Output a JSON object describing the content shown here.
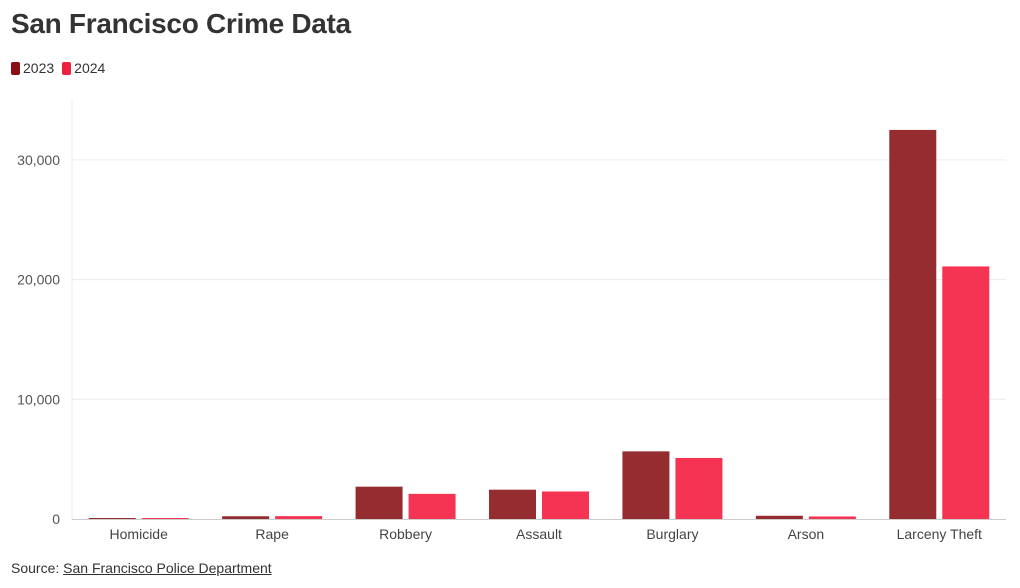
{
  "header": {
    "title": "San Francisco Crime Data"
  },
  "colors": {
    "series_2023": "#952c2f",
    "series_2024": "#f53353",
    "grid": "#ececec",
    "axis": "#cccccc"
  },
  "legend": {
    "items": [
      {
        "label": "2023",
        "color": "#8b0f14"
      },
      {
        "label": "2024",
        "color": "#ee1f3f"
      }
    ]
  },
  "footer": {
    "source_prefix": "Source:",
    "source_link": "San Francisco Police Department"
  },
  "chart_data": {
    "type": "bar",
    "title": "San Francisco Crime Data",
    "xlabel": "",
    "ylabel": "",
    "categories": [
      "Homicide",
      "Rape",
      "Robbery",
      "Assault",
      "Burglary",
      "Arson",
      "Larceny Theft"
    ],
    "series": [
      {
        "name": "2023",
        "values": [
          50,
          230,
          2700,
          2450,
          5650,
          270,
          32500
        ]
      },
      {
        "name": "2024",
        "values": [
          35,
          240,
          2100,
          2300,
          5100,
          210,
          21100
        ]
      }
    ],
    "yticks": [
      0,
      10000,
      20000,
      30000
    ],
    "ytick_labels": [
      "0",
      "10,000",
      "20,000",
      "30,000"
    ],
    "ylim": [
      0,
      35000
    ],
    "grid": true,
    "legend_position": "top-left"
  }
}
